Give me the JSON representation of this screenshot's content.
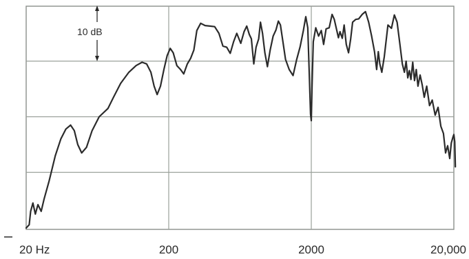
{
  "chart_data": {
    "type": "line",
    "x_scale": "log",
    "x_range": [
      20,
      20000
    ],
    "y_range_db": [
      0,
      40
    ],
    "grid": true,
    "scale_marker_label": "10 dB",
    "scale_marker_value_db": 10,
    "x_tick_labels": [
      {
        "value": 20,
        "label": "20 Hz"
      },
      {
        "value": 200,
        "label": "200"
      },
      {
        "value": 2000,
        "label": "2000"
      },
      {
        "value": 20000,
        "label": "20,000"
      }
    ],
    "series": [
      {
        "color": "#2b2b2b",
        "points": [
          [
            20,
            0
          ],
          [
            21,
            0.6
          ],
          [
            21.5,
            3.0
          ],
          [
            22.3,
            4.5
          ],
          [
            23.2,
            2.5
          ],
          [
            24.2,
            4.2
          ],
          [
            25.5,
            3.0
          ],
          [
            26.7,
            5.2
          ],
          [
            29,
            8.5
          ],
          [
            32,
            13.0
          ],
          [
            35,
            16.0
          ],
          [
            38,
            17.8
          ],
          [
            41,
            18.5
          ],
          [
            43.5,
            17.5
          ],
          [
            46,
            15.0
          ],
          [
            49,
            13.5
          ],
          [
            53,
            14.5
          ],
          [
            58,
            17.5
          ],
          [
            65,
            20.0
          ],
          [
            75,
            21.5
          ],
          [
            82,
            23.5
          ],
          [
            92,
            26.0
          ],
          [
            105,
            28.0
          ],
          [
            118,
            29.2
          ],
          [
            130,
            29.8
          ],
          [
            140,
            29.5
          ],
          [
            150,
            28.0
          ],
          [
            158,
            25.5
          ],
          [
            166,
            24.0
          ],
          [
            175,
            25.5
          ],
          [
            185,
            28.5
          ],
          [
            195,
            31.0
          ],
          [
            205,
            32.3
          ],
          [
            215,
            31.5
          ],
          [
            228,
            29.2
          ],
          [
            242,
            28.5
          ],
          [
            255,
            27.7
          ],
          [
            270,
            29.5
          ],
          [
            285,
            30.5
          ],
          [
            300,
            32.0
          ],
          [
            315,
            35.5
          ],
          [
            335,
            36.8
          ],
          [
            360,
            36.4
          ],
          [
            390,
            36.3
          ],
          [
            420,
            36.2
          ],
          [
            450,
            35.0
          ],
          [
            480,
            32.7
          ],
          [
            510,
            32.5
          ],
          [
            540,
            31.4
          ],
          [
            570,
            33.5
          ],
          [
            600,
            35.0
          ],
          [
            640,
            33.2
          ],
          [
            675,
            35.3
          ],
          [
            705,
            36.3
          ],
          [
            735,
            34.8
          ],
          [
            760,
            34.0
          ],
          [
            790,
            29.5
          ],
          [
            820,
            32.5
          ],
          [
            855,
            34.0
          ],
          [
            880,
            37.0
          ],
          [
            910,
            35.0
          ],
          [
            945,
            31.5
          ],
          [
            985,
            29.0
          ],
          [
            1030,
            32.0
          ],
          [
            1080,
            34.5
          ],
          [
            1130,
            35.6
          ],
          [
            1175,
            37.2
          ],
          [
            1215,
            36.5
          ],
          [
            1265,
            33.5
          ],
          [
            1320,
            30.3
          ],
          [
            1400,
            28.5
          ],
          [
            1490,
            27.4
          ],
          [
            1580,
            30.3
          ],
          [
            1670,
            32.6
          ],
          [
            1760,
            35.5
          ],
          [
            1830,
            38.0
          ],
          [
            1890,
            36.0
          ],
          [
            1945,
            26.0
          ],
          [
            1975,
            20.5
          ],
          [
            2000,
            19.3
          ],
          [
            2025,
            25.5
          ],
          [
            2065,
            33.5
          ],
          [
            2150,
            36.0
          ],
          [
            2250,
            34.5
          ],
          [
            2350,
            35.5
          ],
          [
            2440,
            33.0
          ],
          [
            2540,
            35.8
          ],
          [
            2670,
            36.0
          ],
          [
            2800,
            38.4
          ],
          [
            2900,
            37.5
          ],
          [
            3000,
            35.8
          ],
          [
            3100,
            34.2
          ],
          [
            3180,
            35.3
          ],
          [
            3300,
            34.1
          ],
          [
            3400,
            36.5
          ],
          [
            3520,
            33.0
          ],
          [
            3650,
            31.5
          ],
          [
            3780,
            34.0
          ],
          [
            3900,
            37.0
          ],
          [
            4100,
            37.5
          ],
          [
            4300,
            37.6
          ],
          [
            4550,
            38.4
          ],
          [
            4800,
            38.9
          ],
          [
            5050,
            37.0
          ],
          [
            5300,
            34.5
          ],
          [
            5550,
            31.7
          ],
          [
            5750,
            28.5
          ],
          [
            5900,
            31.7
          ],
          [
            6050,
            29.5
          ],
          [
            6250,
            28.0
          ],
          [
            6500,
            30.8
          ],
          [
            6900,
            36.5
          ],
          [
            7300,
            35.9
          ],
          [
            7650,
            38.3
          ],
          [
            8000,
            37.0
          ],
          [
            8350,
            33.2
          ],
          [
            8700,
            29.5
          ],
          [
            9000,
            28.0
          ],
          [
            9250,
            30.0
          ],
          [
            9500,
            27.0
          ],
          [
            9750,
            28.3
          ],
          [
            10000,
            26.7
          ],
          [
            10300,
            29.8
          ],
          [
            10600,
            26.5
          ],
          [
            10900,
            28.5
          ],
          [
            11200,
            25.5
          ],
          [
            11600,
            27.5
          ],
          [
            12000,
            25.7
          ],
          [
            12400,
            23.5
          ],
          [
            12900,
            25.5
          ],
          [
            13500,
            22.0
          ],
          [
            14100,
            23.0
          ],
          [
            14800,
            20.3
          ],
          [
            15500,
            21.7
          ],
          [
            16200,
            18.3
          ],
          [
            16900,
            17.0
          ],
          [
            17500,
            13.5
          ],
          [
            18100,
            14.8
          ],
          [
            18700,
            12.5
          ],
          [
            19200,
            15.3
          ],
          [
            19700,
            16.3
          ],
          [
            20000,
            16.8
          ],
          [
            20300,
            15.5
          ],
          [
            20500,
            11.0
          ]
        ]
      }
    ]
  }
}
